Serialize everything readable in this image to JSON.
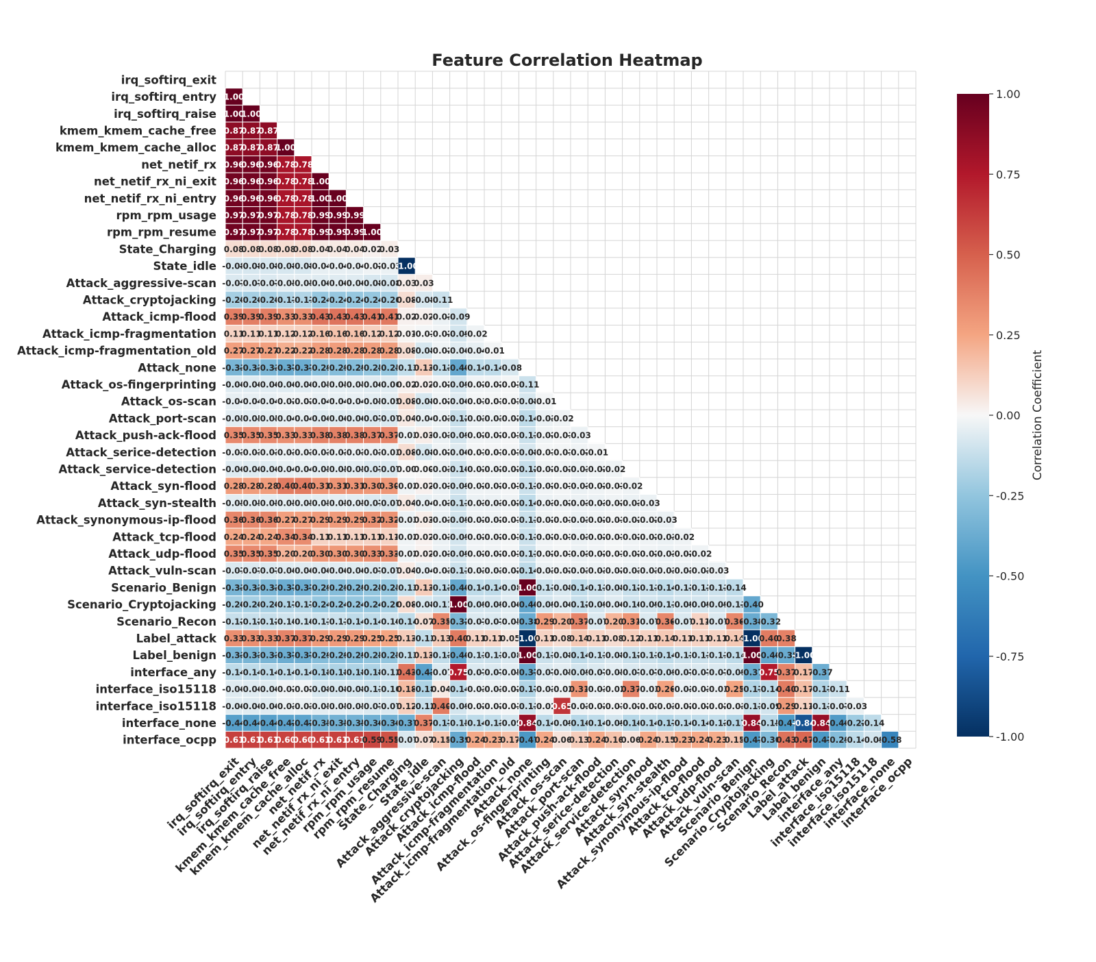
{
  "chart_data": {
    "type": "heatmap",
    "title": "Feature Correlation Heatmap",
    "mask": "upper triangle including diagonal",
    "colormap": "RdBu_r",
    "vmin": -1.0,
    "vmax": 1.0,
    "colorbar": {
      "label": "Correlation Coefficient",
      "ticks": [
        "1.00",
        "0.75",
        "0.50",
        "0.25",
        "0.00",
        "-0.25",
        "-0.50",
        "-0.75",
        "-1.00"
      ],
      "tick_values": [
        1.0,
        0.75,
        0.5,
        0.25,
        0.0,
        -0.25,
        -0.5,
        -0.75,
        -1.0
      ]
    },
    "labels": [
      "irq_softirq_exit",
      "irq_softirq_entry",
      "irq_softirq_raise",
      "kmem_kmem_cache_free",
      "kmem_kmem_cache_alloc",
      "net_netif_rx",
      "net_netif_rx_ni_exit",
      "net_netif_rx_ni_entry",
      "rpm_rpm_usage",
      "rpm_rpm_resume",
      "State_Charging",
      "State_idle",
      "Attack_aggressive-scan",
      "Attack_cryptojacking",
      "Attack_icmp-flood",
      "Attack_icmp-fragmentation",
      "Attack_icmp-fragmentation_old",
      "Attack_none",
      "Attack_os-fingerprinting",
      "Attack_os-scan",
      "Attack_port-scan",
      "Attack_push-ack-flood",
      "Attack_serice-detection",
      "Attack_service-detection",
      "Attack_syn-flood",
      "Attack_syn-stealth",
      "Attack_synonymous-ip-flood",
      "Attack_tcp-flood",
      "Attack_udp-flood",
      "Attack_vuln-scan",
      "Scenario_Benign",
      "Scenario_Cryptojacking",
      "Scenario_Recon",
      "Label_attack",
      "Label_benign",
      "interface_any",
      "interface_iso15118",
      "interface_iso15118 ",
      "interface_none",
      "interface_ocpp"
    ],
    "matrix": [
      [],
      [
        "1.00"
      ],
      [
        "1.00",
        "1.00"
      ],
      [
        "0.87",
        "0.87",
        "0.87"
      ],
      [
        "0.87",
        "0.87",
        "0.87",
        "1.00"
      ],
      [
        "0.96",
        "0.96",
        "0.96",
        "0.78",
        "0.78"
      ],
      [
        "0.96",
        "0.96",
        "0.96",
        "0.78",
        "0.78",
        "1.00"
      ],
      [
        "0.96",
        "0.96",
        "0.96",
        "0.78",
        "0.78",
        "1.00",
        "1.00"
      ],
      [
        "0.97",
        "0.97",
        "0.97",
        "0.78",
        "0.78",
        "0.99",
        "0.99",
        "0.99"
      ],
      [
        "0.97",
        "0.97",
        "0.97",
        "0.78",
        "0.78",
        "0.99",
        "0.99",
        "0.99",
        "1.00"
      ],
      [
        "0.08",
        "0.08",
        "0.08",
        "0.08",
        "0.08",
        "0.04",
        "0.04",
        "0.04",
        "0.02",
        "0.03"
      ],
      [
        "-0.08",
        "-0.08",
        "-0.08",
        "-0.08",
        "-0.08",
        "-0.04",
        "-0.04",
        "-0.04",
        "-0.02",
        "-0.03",
        "-1.00"
      ],
      [
        "-0.07",
        "-0.07",
        "-0.07",
        "-0.05",
        "-0.05",
        "-0.06",
        "-0.06",
        "-0.06",
        "-0.08",
        "-0.08",
        "0.03",
        "0.03"
      ],
      [
        "-0.20",
        "-0.20",
        "-0.20",
        "-0.17",
        "-0.17",
        "-0.24",
        "-0.24",
        "-0.24",
        "-0.24",
        "-0.20",
        "0.08",
        "-0.08",
        "-0.11"
      ],
      [
        "0.39",
        "0.39",
        "0.39",
        "0.33",
        "0.33",
        "0.43",
        "0.43",
        "0.43",
        "0.41",
        "0.41",
        "0.02",
        "0.02",
        "-0.03",
        "-0.09"
      ],
      [
        "0.11",
        "0.11",
        "0.11",
        "0.12",
        "0.12",
        "0.16",
        "0.16",
        "0.16",
        "0.12",
        "0.12",
        "0.01",
        "-0.01",
        "-0.02",
        "-0.09",
        "-0.02"
      ],
      [
        "0.27",
        "0.27",
        "0.27",
        "0.22",
        "0.22",
        "0.28",
        "0.28",
        "0.28",
        "0.28",
        "0.28",
        "0.08",
        "-0.08",
        "-0.02",
        "-0.06",
        "-0.04",
        "-0.01"
      ],
      [
        "-0.33",
        "-0.33",
        "-0.33",
        "-0.37",
        "-0.37",
        "-0.29",
        "-0.29",
        "-0.29",
        "-0.25",
        "-0.25",
        "-0.13",
        "0.13",
        "-0.13",
        "-0.40",
        "-0.14",
        "-0.14",
        "-0.08"
      ],
      [
        "-0.06",
        "-0.06",
        "-0.06",
        "-0.06",
        "-0.06",
        "-0.05",
        "-0.05",
        "-0.05",
        "-0.06",
        "-0.06",
        "0.02",
        "0.02",
        "-0.02",
        "-0.09",
        "-0.02",
        "-0.02",
        "-0.01",
        "-0.11"
      ],
      [
        "-0.04",
        "-0.04",
        "-0.04",
        "-0.02",
        "-0.02",
        "-0.04",
        "-0.04",
        "-0.04",
        "-0.05",
        "-0.05",
        "0.08",
        "-0.08",
        "-0.02",
        "-0.06",
        "-0.01",
        "-0.01",
        "-0.01",
        "-0.08",
        "-0.01"
      ],
      [
        "-0.05",
        "-0.05",
        "-0.05",
        "-0.04",
        "-0.04",
        "-0.06",
        "-0.06",
        "-0.06",
        "-0.07",
        "-0.07",
        "0.04",
        "-0.04",
        "-0.03",
        "-0.12",
        "-0.03",
        "-0.03",
        "-0.02",
        "-0.14",
        "-0.03",
        "-0.02"
      ],
      [
        "0.35",
        "0.35",
        "0.35",
        "0.33",
        "0.33",
        "0.38",
        "0.38",
        "0.38",
        "0.37",
        "0.37",
        "-0.03",
        "0.03",
        "-0.03",
        "-0.09",
        "-0.02",
        "-0.02",
        "-0.01",
        "-0.11",
        "-0.02",
        "-0.01",
        "-0.03"
      ],
      [
        "-0.03",
        "-0.03",
        "-0.03",
        "-0.03",
        "-0.03",
        "-0.03",
        "-0.03",
        "-0.03",
        "-0.03",
        "-0.03",
        "0.08",
        "-0.08",
        "-0.02",
        "-0.06",
        "-0.01",
        "-0.01",
        "-0.01",
        "-0.08",
        "-0.01",
        "-0.01",
        "-0.02",
        "-0.01"
      ],
      [
        "-0.06",
        "-0.06",
        "-0.06",
        "-0.04",
        "-0.04",
        "-0.05",
        "-0.05",
        "-0.05",
        "-0.07",
        "-0.07",
        "0.00",
        "0.00",
        "-0.03",
        "-0.10",
        "-0.02",
        "-0.02",
        "-0.02",
        "-0.12",
        "-0.02",
        "-0.02",
        "-0.03",
        "-0.02",
        "-0.02"
      ],
      [
        "0.28",
        "0.28",
        "0.28",
        "0.40",
        "0.40",
        "0.31",
        "0.31",
        "0.31",
        "0.30",
        "0.30",
        "-0.02",
        "0.02",
        "-0.03",
        "-0.09",
        "-0.02",
        "-0.02",
        "-0.01",
        "-0.11",
        "-0.02",
        "-0.01",
        "-0.03",
        "-0.02",
        "-0.01",
        "-0.02"
      ],
      [
        "-0.05",
        "-0.05",
        "-0.05",
        "-0.05",
        "-0.05",
        "-0.05",
        "-0.05",
        "-0.05",
        "-0.07",
        "-0.07",
        "0.04",
        "-0.04",
        "-0.03",
        "-0.11",
        "-0.03",
        "-0.03",
        "-0.02",
        "-0.14",
        "-0.03",
        "-0.02",
        "-0.03",
        "-0.03",
        "-0.02",
        "-0.03",
        "-0.03"
      ],
      [
        "0.36",
        "0.36",
        "0.36",
        "0.27",
        "0.27",
        "0.29",
        "0.29",
        "0.29",
        "0.32",
        "0.32",
        "-0.03",
        "0.03",
        "-0.03",
        "-0.09",
        "-0.02",
        "-0.02",
        "-0.01",
        "-0.11",
        "-0.02",
        "-0.01",
        "-0.03",
        "-0.02",
        "-0.01",
        "-0.02",
        "-0.02",
        "-0.03"
      ],
      [
        "0.24",
        "0.24",
        "0.24",
        "0.34",
        "0.34",
        "0.11",
        "0.11",
        "0.11",
        "0.11",
        "0.11",
        "-0.02",
        "0.02",
        "-0.03",
        "-0.09",
        "-0.02",
        "-0.02",
        "-0.01",
        "-0.11",
        "-0.02",
        "-0.01",
        "-0.03",
        "-0.02",
        "-0.01",
        "-0.02",
        "-0.02",
        "-0.03",
        "-0.02"
      ],
      [
        "0.35",
        "0.35",
        "0.35",
        "0.20",
        "0.20",
        "0.30",
        "0.30",
        "0.30",
        "0.33",
        "0.33",
        "-0.02",
        "0.02",
        "-0.03",
        "-0.09",
        "-0.02",
        "-0.02",
        "-0.01",
        "-0.11",
        "-0.02",
        "-0.01",
        "-0.03",
        "-0.02",
        "-0.01",
        "-0.02",
        "-0.02",
        "-0.03",
        "-0.02",
        "-0.02"
      ],
      [
        "-0.07",
        "-0.07",
        "-0.07",
        "-0.06",
        "-0.06",
        "-0.06",
        "-0.06",
        "-0.06",
        "-0.07",
        "-0.07",
        "0.04",
        "-0.04",
        "-0.03",
        "-0.11",
        "-0.03",
        "-0.03",
        "-0.02",
        "-0.14",
        "-0.03",
        "-0.02",
        "-0.03",
        "-0.03",
        "-0.02",
        "-0.03",
        "-0.03",
        "-0.03",
        "-0.03",
        "-0.03",
        "-0.03"
      ],
      [
        "-0.33",
        "-0.33",
        "-0.33",
        "-0.37",
        "-0.37",
        "-0.29",
        "-0.29",
        "-0.29",
        "-0.25",
        "-0.25",
        "-0.13",
        "0.13",
        "-0.13",
        "-0.40",
        "-0.14",
        "-0.14",
        "-0.08",
        "1.00",
        "-0.11",
        "-0.08",
        "-0.14",
        "-0.11",
        "-0.08",
        "-0.12",
        "-0.11",
        "-0.14",
        "-0.11",
        "-0.11",
        "-0.11",
        "-0.14"
      ],
      [
        "-0.20",
        "-0.20",
        "-0.20",
        "-0.17",
        "-0.17",
        "-0.24",
        "-0.24",
        "-0.24",
        "-0.24",
        "-0.20",
        "0.08",
        "-0.08",
        "-0.11",
        "1.00",
        "-0.09",
        "-0.09",
        "-0.06",
        "-0.40",
        "-0.09",
        "-0.06",
        "-0.12",
        "-0.09",
        "-0.06",
        "-0.10",
        "-0.09",
        "-0.11",
        "-0.09",
        "-0.09",
        "-0.09",
        "-0.11",
        "-0.40"
      ],
      [
        "-0.12",
        "-0.12",
        "-0.12",
        "-0.10",
        "-0.10",
        "-0.11",
        "-0.11",
        "-0.14",
        "-0.14",
        "-0.10",
        "-0.14",
        "0.07",
        "0.35",
        "-0.32",
        "-0.07",
        "-0.07",
        "-0.05",
        "-0.38",
        "0.29",
        "0.20",
        "0.37",
        "-0.07",
        "0.20",
        "0.31",
        "-0.07",
        "0.36",
        "-0.07",
        "0.11",
        "-0.07",
        "0.36",
        "-0.38",
        "-0.32"
      ],
      [
        "0.33",
        "0.33",
        "0.33",
        "0.37",
        "0.37",
        "0.29",
        "0.29",
        "0.29",
        "0.25",
        "0.25",
        "0.13",
        "-0.13",
        "0.13",
        "0.40",
        "0.11",
        "0.11",
        "0.05",
        "-1.00",
        "0.11",
        "0.08",
        "0.14",
        "0.11",
        "0.08",
        "0.12",
        "0.11",
        "0.14",
        "0.11",
        "0.11",
        "0.11",
        "0.14",
        "-1.00",
        "0.40",
        "0.38"
      ],
      [
        "-0.33",
        "-0.33",
        "-0.33",
        "-0.37",
        "-0.37",
        "-0.29",
        "-0.29",
        "-0.29",
        "-0.25",
        "-0.25",
        "-0.13",
        "0.13",
        "-0.13",
        "-0.40",
        "-0.11",
        "-0.11",
        "-0.08",
        "1.00",
        "-0.11",
        "-0.08",
        "-0.14",
        "-0.11",
        "-0.08",
        "-0.12",
        "-0.11",
        "-0.14",
        "-0.11",
        "-0.11",
        "-0.11",
        "-0.14",
        "1.00",
        "-0.40",
        "-0.38",
        "-1.00"
      ],
      [
        "-0.14",
        "-0.14",
        "-0.14",
        "-0.14",
        "-0.14",
        "-0.18",
        "-0.18",
        "-0.18",
        "-0.18",
        "-0.12",
        "0.43",
        "-0.43",
        "-0.07",
        "0.75",
        "-0.07",
        "-0.07",
        "-0.05",
        "-0.37",
        "-0.07",
        "-0.05",
        "-0.09",
        "-0.07",
        "-0.05",
        "-0.07",
        "-0.07",
        "-0.09",
        "-0.07",
        "-0.07",
        "-0.07",
        "-0.09",
        "-0.37",
        "0.75",
        "0.37",
        "0.17",
        "-0.37"
      ],
      [
        "-0.06",
        "-0.06",
        "-0.06",
        "-0.02",
        "-0.02",
        "-0.08",
        "-0.08",
        "-0.08",
        "-0.11",
        "-0.10",
        "0.18",
        "-0.18",
        "0.04",
        "-0.14",
        "-0.03",
        "-0.03",
        "-0.02",
        "-0.17",
        "-0.03",
        "-0.02",
        "0.31",
        "-0.03",
        "-0.02",
        "0.37",
        "-0.03",
        "0.26",
        "-0.03",
        "-0.03",
        "-0.03",
        "0.25",
        "-0.17",
        "-0.14",
        "0.40",
        "0.17",
        "-0.17",
        "-0.11"
      ],
      [
        "-0.06",
        "-0.06",
        "-0.06",
        "-0.03",
        "-0.03",
        "-0.05",
        "-0.05",
        "-0.05",
        "-0.07",
        "-0.07",
        "0.12",
        "-0.12",
        "0.40",
        "-0.09",
        "-0.02",
        "-0.02",
        "-0.01",
        "-0.11",
        "-0.02",
        "0.65",
        "-0.03",
        "-0.02",
        "-0.01",
        "-0.02",
        "-0.02",
        "-0.03",
        "-0.02",
        "-0.02",
        "-0.02",
        "-0.03",
        "-0.11",
        "-0.09",
        "0.29",
        "0.11",
        "-0.11",
        "-0.07",
        "-0.03"
      ],
      [
        "-0.44",
        "-0.44",
        "-0.44",
        "-0.42",
        "-0.42",
        "-0.35",
        "-0.35",
        "-0.35",
        "-0.36",
        "-0.36",
        "-0.37",
        "0.37",
        "-0.17",
        "-0.15",
        "-0.14",
        "-0.13",
        "-0.09",
        "0.84",
        "-0.14",
        "-0.09",
        "-0.16",
        "-0.14",
        "-0.09",
        "-0.16",
        "-0.14",
        "-0.17",
        "-0.14",
        "-0.14",
        "-0.13",
        "-0.17",
        "0.84",
        "-0.15",
        "-0.47",
        "-0.84",
        "0.84",
        "-0.46",
        "-0.22",
        "-0.14"
      ],
      [
        "0.61",
        "0.61",
        "0.61",
        "0.60",
        "0.60",
        "0.61",
        "0.61",
        "0.61",
        "0.59",
        "0.55",
        "-0.07",
        "0.07",
        "0.15",
        "-0.39",
        "0.24",
        "0.23",
        "0.17",
        "-0.47",
        "0.24",
        "0.06",
        "0.13",
        "0.24",
        "0.16",
        "0.06",
        "0.24",
        "0.15",
        "0.23",
        "0.24",
        "0.23",
        "0.15",
        "-0.47",
        "-0.30",
        "0.43",
        "0.47",
        "-0.47",
        "-0.29",
        "-0.14",
        "-0.09",
        "-0.58"
      ]
    ]
  }
}
